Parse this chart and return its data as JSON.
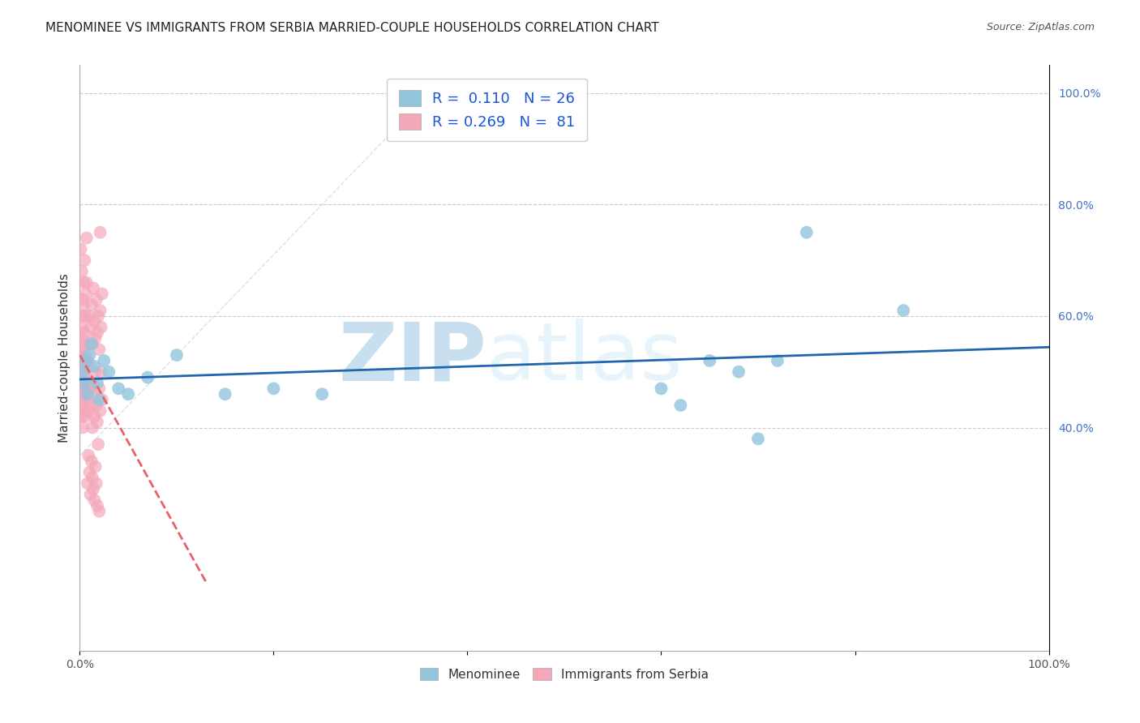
{
  "title": "MENOMINEE VS IMMIGRANTS FROM SERBIA MARRIED-COUPLE HOUSEHOLDS CORRELATION CHART",
  "source": "Source: ZipAtlas.com",
  "ylabel": "Married-couple Households",
  "legend_labels": [
    "Menominee",
    "Immigrants from Serbia"
  ],
  "R_blue": 0.11,
  "N_blue": 26,
  "R_pink": 0.269,
  "N_pink": 81,
  "blue_color": "#92c5de",
  "pink_color": "#f4a7b9",
  "blue_trend_color": "#2166ac",
  "pink_trend_color": "#e8606a",
  "background_color": "#ffffff",
  "xlim": [
    0,
    1
  ],
  "ylim": [
    0,
    1.05
  ],
  "right_ytick_labels": [
    "40.0%",
    "60.0%",
    "80.0%",
    "100.0%"
  ],
  "right_ytick_vals": [
    0.4,
    0.6,
    0.8,
    1.0
  ],
  "xtick_labels_left": "0.0%",
  "xtick_labels_right": "100.0%",
  "blue_x": [
    0.003,
    0.005,
    0.006,
    0.008,
    0.01,
    0.012,
    0.015,
    0.018,
    0.02,
    0.025,
    0.03,
    0.04,
    0.05,
    0.07,
    0.1,
    0.15,
    0.2,
    0.25,
    0.6,
    0.62,
    0.65,
    0.68,
    0.7,
    0.72,
    0.75,
    0.85
  ],
  "blue_y": [
    0.5,
    0.48,
    0.52,
    0.46,
    0.53,
    0.55,
    0.51,
    0.48,
    0.45,
    0.52,
    0.5,
    0.47,
    0.46,
    0.49,
    0.53,
    0.46,
    0.47,
    0.46,
    0.47,
    0.44,
    0.52,
    0.5,
    0.38,
    0.52,
    0.75,
    0.61
  ],
  "pink_x": [
    0.001,
    0.001,
    0.001,
    0.001,
    0.001,
    0.002,
    0.002,
    0.002,
    0.002,
    0.002,
    0.003,
    0.003,
    0.003,
    0.003,
    0.003,
    0.004,
    0.004,
    0.004,
    0.004,
    0.005,
    0.005,
    0.005,
    0.006,
    0.006,
    0.006,
    0.007,
    0.007,
    0.007,
    0.008,
    0.008,
    0.009,
    0.009,
    0.01,
    0.01,
    0.01,
    0.011,
    0.011,
    0.012,
    0.012,
    0.013,
    0.013,
    0.014,
    0.014,
    0.015,
    0.015,
    0.016,
    0.016,
    0.017,
    0.017,
    0.018,
    0.018,
    0.019,
    0.02,
    0.02,
    0.021,
    0.021,
    0.022,
    0.022,
    0.023,
    0.023,
    0.001,
    0.002,
    0.003,
    0.004,
    0.005,
    0.006,
    0.007,
    0.008,
    0.009,
    0.01,
    0.011,
    0.012,
    0.013,
    0.014,
    0.015,
    0.016,
    0.017,
    0.018,
    0.019,
    0.02,
    0.021
  ],
  "pink_y": [
    0.5,
    0.53,
    0.47,
    0.45,
    0.52,
    0.48,
    0.55,
    0.42,
    0.58,
    0.46,
    0.51,
    0.44,
    0.6,
    0.4,
    0.56,
    0.54,
    0.48,
    0.62,
    0.43,
    0.57,
    0.46,
    0.5,
    0.64,
    0.42,
    0.53,
    0.49,
    0.66,
    0.45,
    0.52,
    0.48,
    0.55,
    0.43,
    0.6,
    0.47,
    0.51,
    0.58,
    0.44,
    0.62,
    0.48,
    0.55,
    0.4,
    0.65,
    0.46,
    0.59,
    0.42,
    0.56,
    0.5,
    0.63,
    0.44,
    0.57,
    0.41,
    0.6,
    0.54,
    0.47,
    0.61,
    0.43,
    0.58,
    0.5,
    0.64,
    0.45,
    0.72,
    0.68,
    0.63,
    0.66,
    0.7,
    0.6,
    0.74,
    0.3,
    0.35,
    0.32,
    0.28,
    0.34,
    0.31,
    0.29,
    0.27,
    0.33,
    0.3,
    0.26,
    0.37,
    0.25,
    0.75
  ],
  "watermark_zip": "ZIP",
  "watermark_atlas": "atlas",
  "watermark_color": "#c8dff0",
  "grid_color": "#cccccc",
  "title_fontsize": 11,
  "axis_label_fontsize": 11,
  "tick_fontsize": 10,
  "legend_fontsize": 13,
  "source_fontsize": 9
}
